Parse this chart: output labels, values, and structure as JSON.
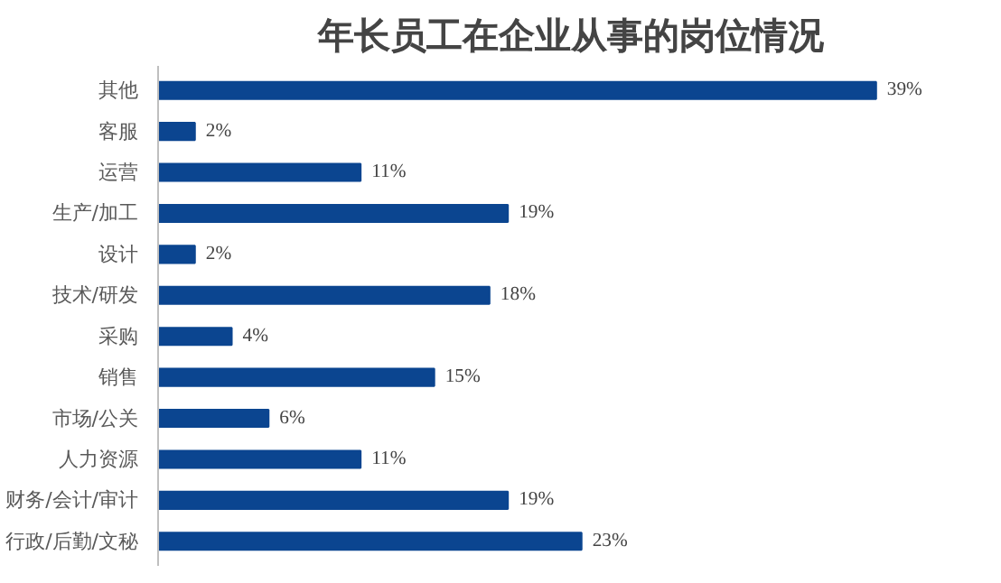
{
  "chart_data": {
    "type": "bar",
    "orientation": "horizontal",
    "title": "年长员工在企业从事的岗位情况",
    "categories": [
      "其他",
      "客服",
      "运营",
      "生产/加工",
      "设计",
      "技术/研发",
      "采购",
      "销售",
      "市场/公关",
      "人力资源",
      "财务/会计/审计",
      "行政/后勤/文秘"
    ],
    "values": [
      39,
      2,
      11,
      19,
      2,
      18,
      4,
      15,
      6,
      11,
      19,
      23
    ],
    "value_labels": [
      "39%",
      "2%",
      "11%",
      "19%",
      "2%",
      "18%",
      "4%",
      "15%",
      "6%",
      "11%",
      "19%",
      "23%"
    ],
    "color": "#0b4590",
    "grid": false
  }
}
